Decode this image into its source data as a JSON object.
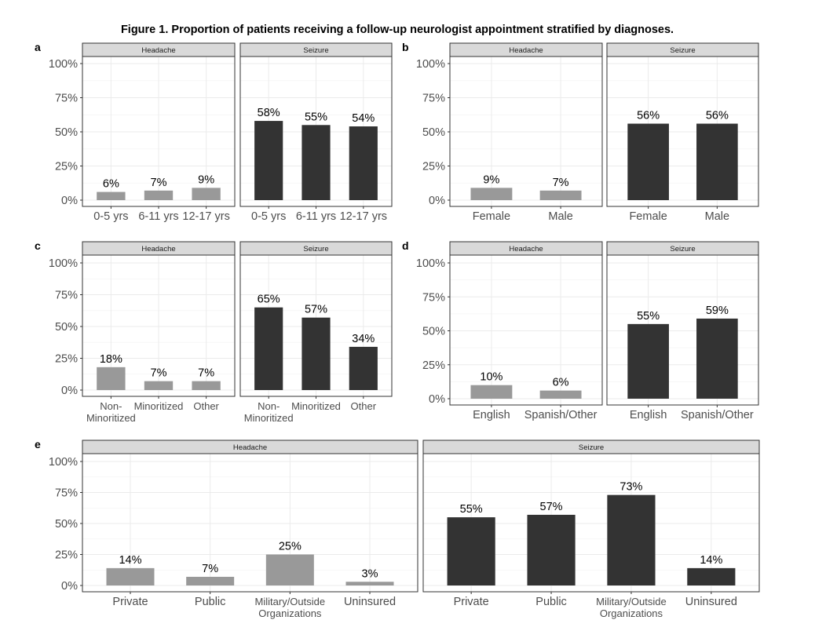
{
  "title": "Figure 1. Proportion of patients receiving a follow-up neurologist appointment stratified by diagnoses.",
  "colors": {
    "headache": "#999999",
    "seizure": "#333333",
    "strip": "#d9d9d9",
    "grid": "#ebebeb"
  },
  "chart_data": [
    {
      "panel": "a",
      "type": "bar",
      "ylim": [
        0,
        1
      ],
      "ytick_labels": [
        "0%",
        "25%",
        "50%",
        "75%",
        "100%"
      ],
      "facets": [
        {
          "label": "Headache",
          "categories": [
            [
              "0-5 yrs"
            ],
            [
              "6-11 yrs"
            ],
            [
              "12-17 yrs"
            ]
          ],
          "values": [
            0.06,
            0.07,
            0.09
          ],
          "value_labels": [
            "6%",
            "7%",
            "9%"
          ]
        },
        {
          "label": "Seizure",
          "categories": [
            [
              "0-5 yrs"
            ],
            [
              "6-11 yrs"
            ],
            [
              "12-17 yrs"
            ]
          ],
          "values": [
            0.58,
            0.55,
            0.54
          ],
          "value_labels": [
            "58%",
            "55%",
            "54%"
          ]
        }
      ]
    },
    {
      "panel": "b",
      "type": "bar",
      "ylim": [
        0,
        1
      ],
      "ytick_labels": [
        "0%",
        "25%",
        "50%",
        "75%",
        "100%"
      ],
      "facets": [
        {
          "label": "Headache",
          "categories": [
            [
              "Female"
            ],
            [
              "Male"
            ]
          ],
          "values": [
            0.09,
            0.07
          ],
          "value_labels": [
            "9%",
            "7%"
          ]
        },
        {
          "label": "Seizure",
          "categories": [
            [
              "Female"
            ],
            [
              "Male"
            ]
          ],
          "values": [
            0.56,
            0.56
          ],
          "value_labels": [
            "56%",
            "56%"
          ]
        }
      ]
    },
    {
      "panel": "c",
      "type": "bar",
      "ylim": [
        0,
        1
      ],
      "ytick_labels": [
        "0%",
        "25%",
        "50%",
        "75%",
        "100%"
      ],
      "facets": [
        {
          "label": "Headache",
          "categories": [
            [
              "Non-",
              "Minoritized"
            ],
            [
              "Minoritized"
            ],
            [
              "Other"
            ]
          ],
          "values": [
            0.18,
            0.07,
            0.07
          ],
          "value_labels": [
            "18%",
            "7%",
            "7%"
          ]
        },
        {
          "label": "Seizure",
          "categories": [
            [
              "Non-",
              "Minoritized"
            ],
            [
              "Minoritized"
            ],
            [
              "Other"
            ]
          ],
          "values": [
            0.65,
            0.57,
            0.34
          ],
          "value_labels": [
            "65%",
            "57%",
            "34%"
          ]
        }
      ]
    },
    {
      "panel": "d",
      "type": "bar",
      "ylim": [
        0,
        1
      ],
      "ytick_labels": [
        "0%",
        "25%",
        "50%",
        "75%",
        "100%"
      ],
      "facets": [
        {
          "label": "Headache",
          "categories": [
            [
              "English"
            ],
            [
              "Spanish/Other"
            ]
          ],
          "values": [
            0.1,
            0.06
          ],
          "value_labels": [
            "10%",
            "6%"
          ]
        },
        {
          "label": "Seizure",
          "categories": [
            [
              "English"
            ],
            [
              "Spanish/Other"
            ]
          ],
          "values": [
            0.55,
            0.59
          ],
          "value_labels": [
            "55%",
            "59%"
          ]
        }
      ]
    },
    {
      "panel": "e",
      "type": "bar",
      "ylim": [
        0,
        1
      ],
      "ytick_labels": [
        "0%",
        "25%",
        "50%",
        "75%",
        "100%"
      ],
      "facets": [
        {
          "label": "Headache",
          "categories": [
            [
              "Private"
            ],
            [
              "Public"
            ],
            [
              "Military/Outside",
              "Organizations"
            ],
            [
              "Uninsured"
            ]
          ],
          "values": [
            0.14,
            0.07,
            0.25,
            0.03
          ],
          "value_labels": [
            "14%",
            "7%",
            "25%",
            "3%"
          ]
        },
        {
          "label": "Seizure",
          "categories": [
            [
              "Private"
            ],
            [
              "Public"
            ],
            [
              "Military/Outside",
              "Organizations"
            ],
            [
              "Uninsured"
            ]
          ],
          "values": [
            0.55,
            0.57,
            0.73,
            0.14
          ],
          "value_labels": [
            "55%",
            "57%",
            "73%",
            "14%"
          ]
        }
      ]
    }
  ]
}
